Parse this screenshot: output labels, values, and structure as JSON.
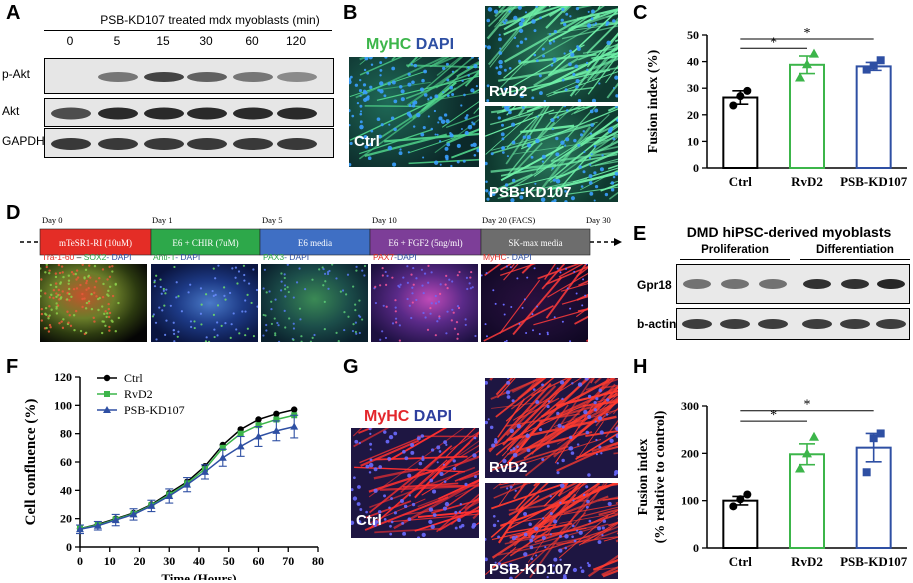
{
  "panelA": {
    "label": "A",
    "header": "PSB-KD107 treated mdx myoblasts (min)",
    "times": [
      "0",
      "5",
      "15",
      "30",
      "60",
      "120"
    ],
    "rows": [
      "p-Akt",
      "Akt",
      "GAPDH"
    ],
    "pakt_intensity": [
      0.0,
      0.55,
      0.8,
      0.65,
      0.55,
      0.45
    ]
  },
  "panelB": {
    "label": "B",
    "stain_myhc": "MyHC",
    "stain_dapi": "DAPI",
    "images": [
      "Ctrl",
      "RvD2",
      "PSB-KD107"
    ]
  },
  "panelC": {
    "label": "C",
    "sig_marks": [
      "*",
      "*"
    ],
    "chart_data": {
      "type": "bar",
      "categories": [
        "Ctrl",
        "RvD2",
        "PSB-KD107"
      ],
      "values": [
        26.5,
        38.8,
        38.2
      ],
      "errors": [
        2.5,
        3.3,
        1.5
      ],
      "points": [
        [
          23.5,
          27,
          29
        ],
        [
          34,
          39,
          43
        ],
        [
          37,
          38.5,
          40.5
        ]
      ],
      "ylabel": "Fusion index (%)",
      "ylim": [
        0,
        50
      ],
      "yticks": [
        "0",
        "10",
        "20",
        "30",
        "40",
        "50"
      ],
      "colors": [
        "#000000",
        "#3cb54a",
        "#2e4fa3"
      ]
    }
  },
  "panelD": {
    "label": "D",
    "days": [
      "Day 0",
      "Day 1",
      "Day 5",
      "Day 10",
      "Day 20 (FACS)",
      "Day 30"
    ],
    "stages": [
      {
        "text": "mTeSR1-RI (10uM)",
        "color": "#e42d26"
      },
      {
        "text": "E6 + CHIR (7uM)",
        "color": "#2da84a"
      },
      {
        "text": "E6 media",
        "color": "#3f6fc4"
      },
      {
        "text": "E6 + FGF2 (5ng/ml)",
        "color": "#7d3e98"
      },
      {
        "text": "SK-max media",
        "color": "#6d6d6d"
      }
    ],
    "captions": [
      [
        {
          "t": "Tra-1-60",
          "c": "#e42d26"
        },
        {
          "t": " – ",
          "c": "#000000"
        },
        {
          "t": "SOX2",
          "c": "#2da84a"
        },
        {
          "t": "- DAPI",
          "c": "#2e4fa3"
        }
      ],
      [
        {
          "t": "Anti-T",
          "c": "#2da84a"
        },
        {
          "t": "- DAPI",
          "c": "#2e4fa3"
        }
      ],
      [
        {
          "t": "PAX3",
          "c": "#2da84a"
        },
        {
          "t": "- DAPI",
          "c": "#2e4fa3"
        }
      ],
      [
        {
          "t": "PAX7",
          "c": "#e42d26"
        },
        {
          "t": "-DAPI",
          "c": "#2e4fa3"
        }
      ],
      [
        {
          "t": "MyHC",
          "c": "#e42d26"
        },
        {
          "t": "- DAPI",
          "c": "#2e4fa3"
        }
      ]
    ]
  },
  "panelE": {
    "label": "E",
    "title": "DMD hiPSC-derived myoblasts",
    "group1": "Proliferation",
    "group2": "Differentiation",
    "rows": [
      "Gpr18",
      "b-actin"
    ]
  },
  "panelF": {
    "label": "F",
    "chart_data": {
      "type": "line",
      "x": [
        0,
        6,
        12,
        18,
        24,
        30,
        36,
        42,
        48,
        54,
        60,
        66,
        72
      ],
      "series": [
        {
          "name": "Ctrl",
          "color": "#000000",
          "marker": "circle",
          "values": [
            13,
            16,
            20,
            24,
            30,
            38,
            46,
            57,
            72,
            83,
            90,
            94,
            97
          ]
        },
        {
          "name": "RvD2",
          "color": "#3cb54a",
          "marker": "square",
          "values": [
            13,
            15.5,
            19.5,
            23.5,
            29.5,
            37,
            45,
            55,
            70,
            80,
            86,
            90,
            93
          ]
        },
        {
          "name": "PSB-KD107",
          "color": "#2e4fa3",
          "marker": "triangle",
          "values": [
            12.5,
            15,
            19,
            23,
            29,
            36,
            44,
            53,
            63,
            71,
            78,
            82,
            85
          ]
        }
      ],
      "errors": [
        3,
        3,
        4,
        4,
        4,
        5,
        5,
        5,
        6,
        7,
        7,
        7,
        8
      ],
      "xlabel": "Time (Hours)",
      "ylabel": "Cell confluence (%)",
      "xlim": [
        0,
        80
      ],
      "ylim": [
        0,
        120
      ],
      "xticks": [
        "0",
        "10",
        "20",
        "30",
        "40",
        "50",
        "60",
        "70",
        "80"
      ],
      "yticks": [
        "0",
        "20",
        "40",
        "60",
        "80",
        "100",
        "120"
      ],
      "legend": "top-left"
    }
  },
  "panelG": {
    "label": "G",
    "stain_myhc": "MyHC",
    "stain_dapi": "DAPI",
    "images": [
      "Ctrl",
      "RvD2",
      "PSB-KD107"
    ]
  },
  "panelH": {
    "label": "H",
    "sig_marks": [
      "*",
      "*"
    ],
    "chart_data": {
      "type": "bar",
      "categories": [
        "Ctrl",
        "RvD2",
        "PSB-KD107"
      ],
      "values": [
        100,
        198,
        212
      ],
      "errors": [
        9,
        22,
        30
      ],
      "points": [
        [
          88,
          103,
          113
        ],
        [
          168,
          200,
          235
        ],
        [
          160,
          232,
          242
        ]
      ],
      "ylabel": "Fusion index",
      "ylabel2": "(% relative to control)",
      "ylim": [
        0,
        300
      ],
      "yticks": [
        "0",
        "100",
        "200",
        "300"
      ],
      "colors": [
        "#000000",
        "#3cb54a",
        "#2e4fa3"
      ]
    }
  }
}
